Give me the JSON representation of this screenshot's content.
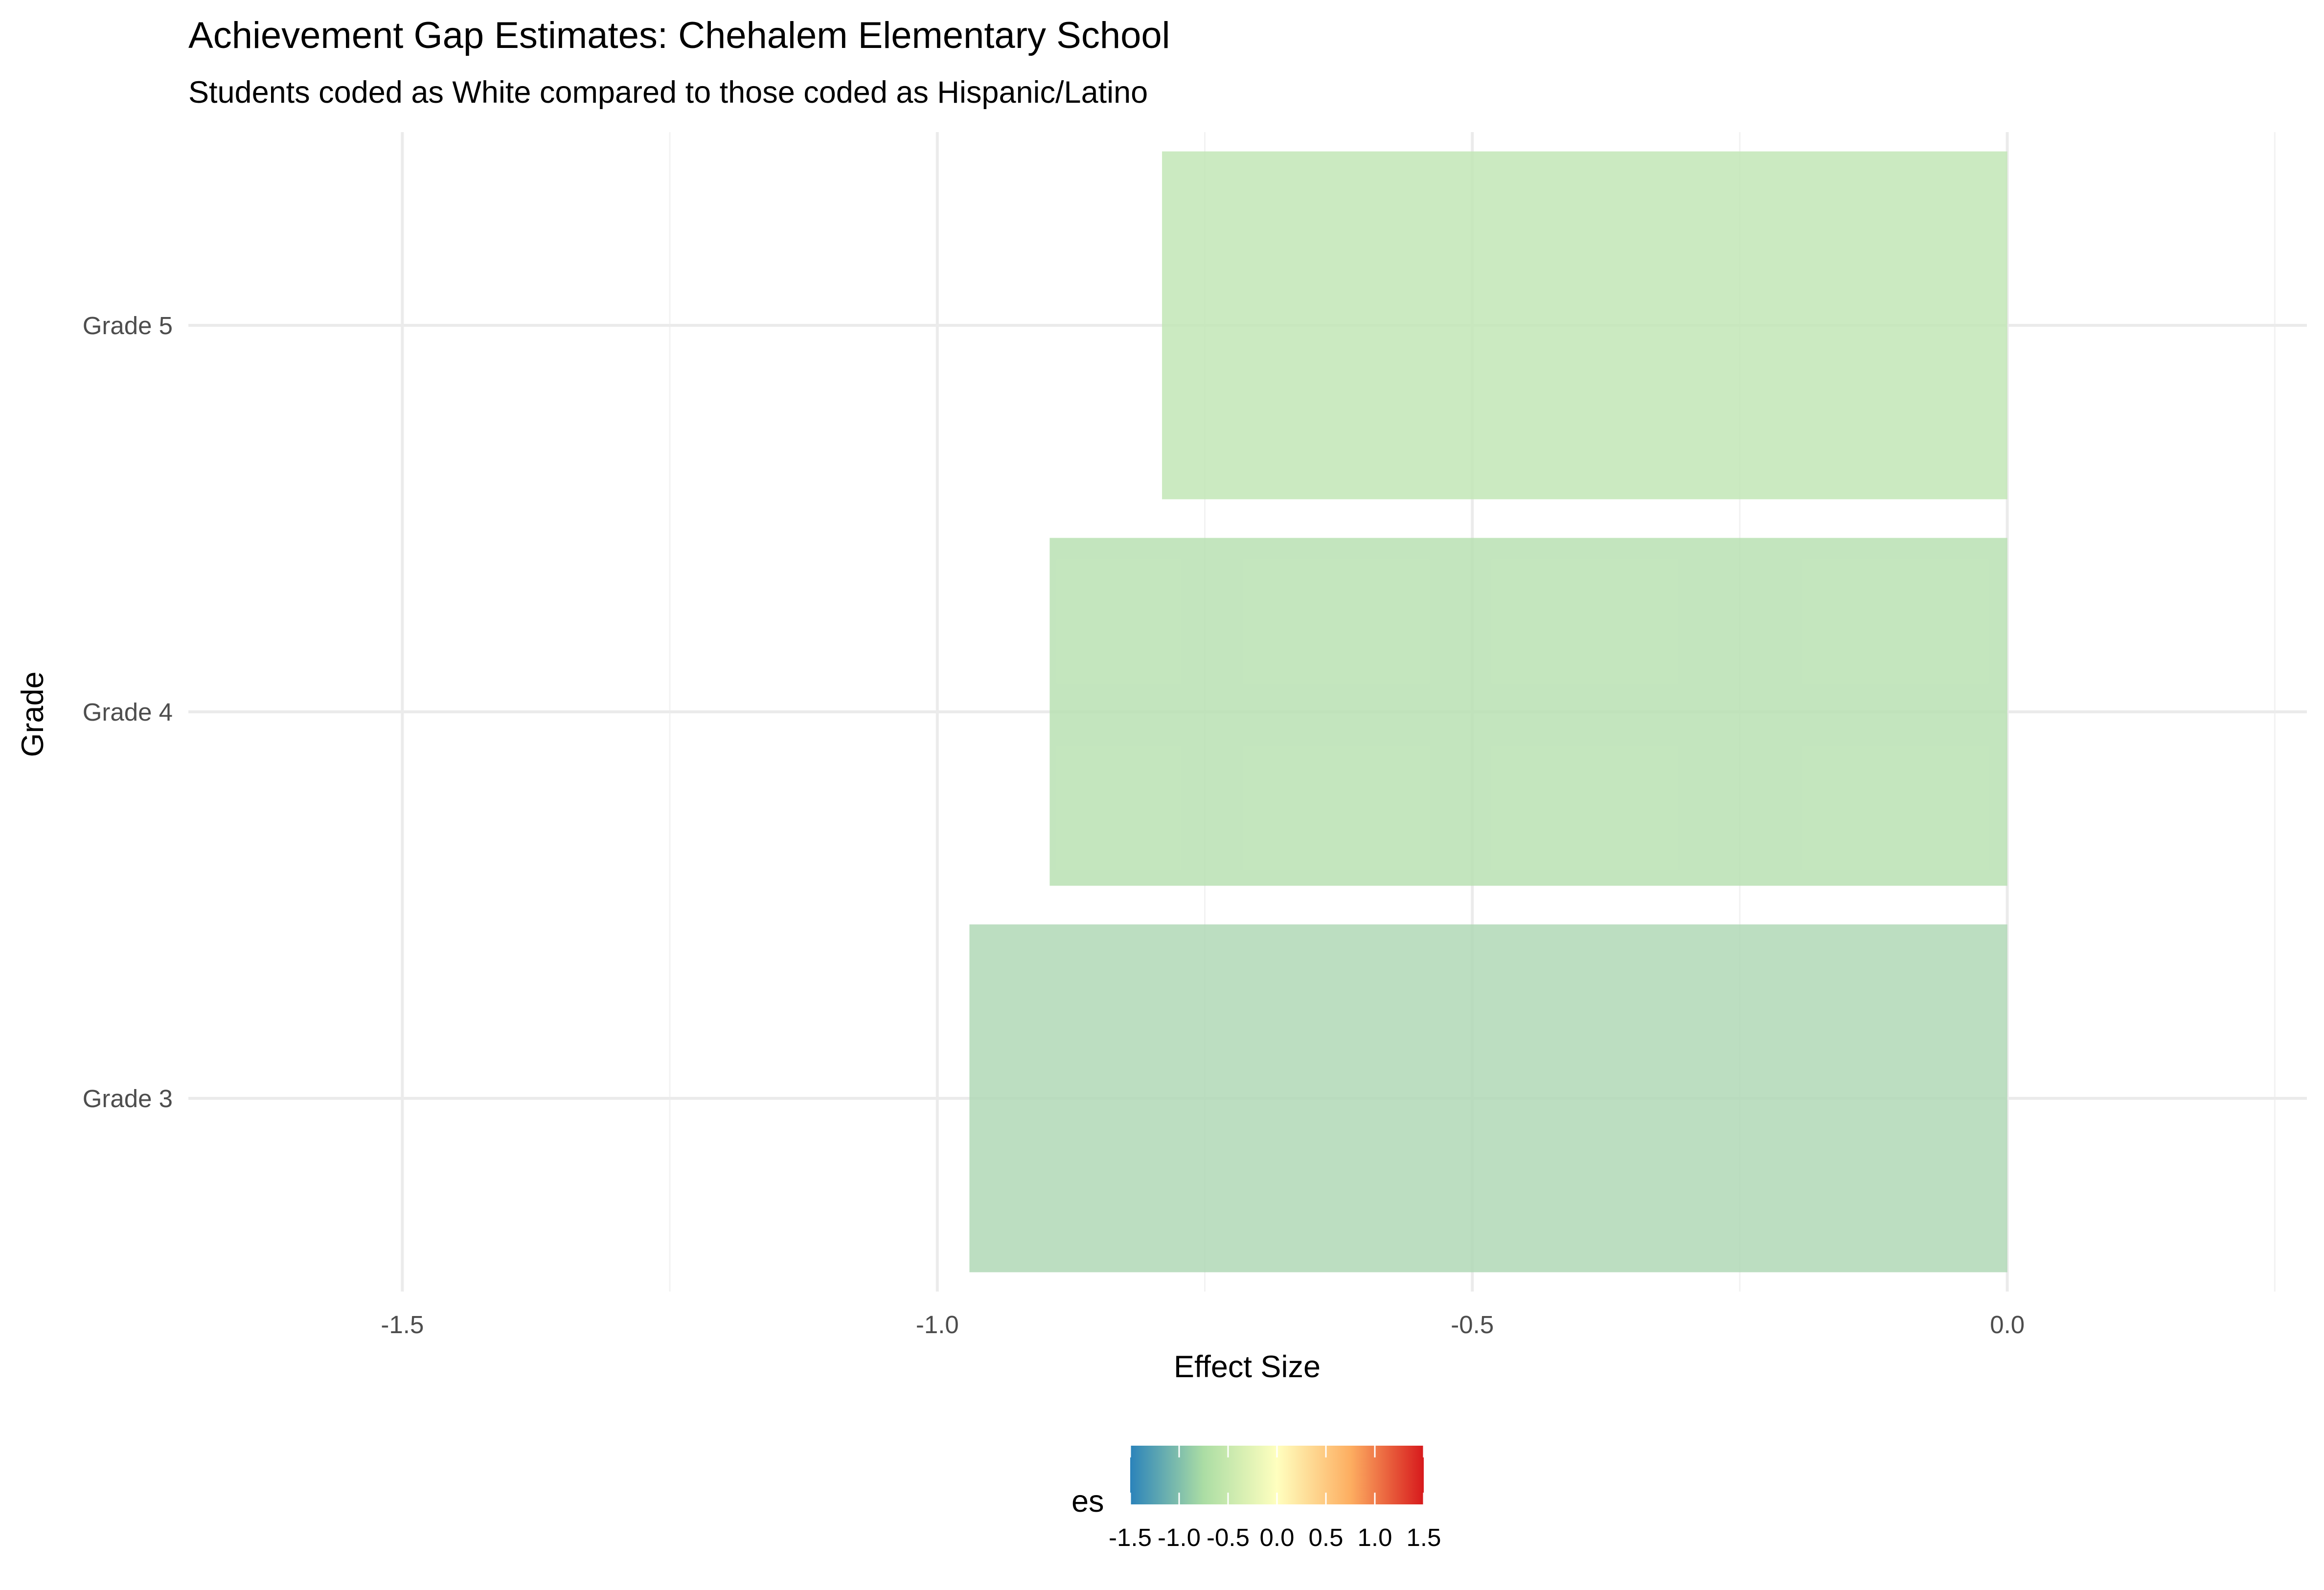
{
  "chart_data": {
    "type": "bar",
    "orientation": "horizontal",
    "title": "Achievement Gap Estimates: Chehalem Elementary School",
    "subtitle": "Students coded as White compared to those coded as Hispanic/Latino",
    "xlabel": "Effect Size",
    "ylabel": "Grade",
    "categories": [
      "Grade 3",
      "Grade 4",
      "Grade 5"
    ],
    "values": [
      -0.97,
      -0.895,
      -0.79
    ],
    "xlim": [
      -1.7,
      0.28
    ],
    "xticks": [
      -1.5,
      -1.0,
      -0.5,
      0.0
    ],
    "xtick_labels": [
      "-1.5",
      "-1.0",
      "-0.5",
      "0.0"
    ],
    "grid": true,
    "bar_colors": [
      "#b0d8b6",
      "#b9e1b3",
      "#c2e6b6"
    ],
    "legend": {
      "title": "es",
      "position": "bottom",
      "type": "colorbar",
      "range": [
        -1.5,
        1.5
      ],
      "ticks": [
        -1.5,
        -1.0,
        -0.5,
        0.0,
        0.5,
        1.0,
        1.5
      ],
      "tick_labels": [
        "-1.5",
        "-1.0",
        "-0.5",
        "0.0",
        "0.5",
        "1.0",
        "1.5"
      ],
      "colors": [
        "#2b83ba",
        "#abdda4",
        "#ffffbf",
        "#fdae61",
        "#d7191c"
      ]
    }
  }
}
